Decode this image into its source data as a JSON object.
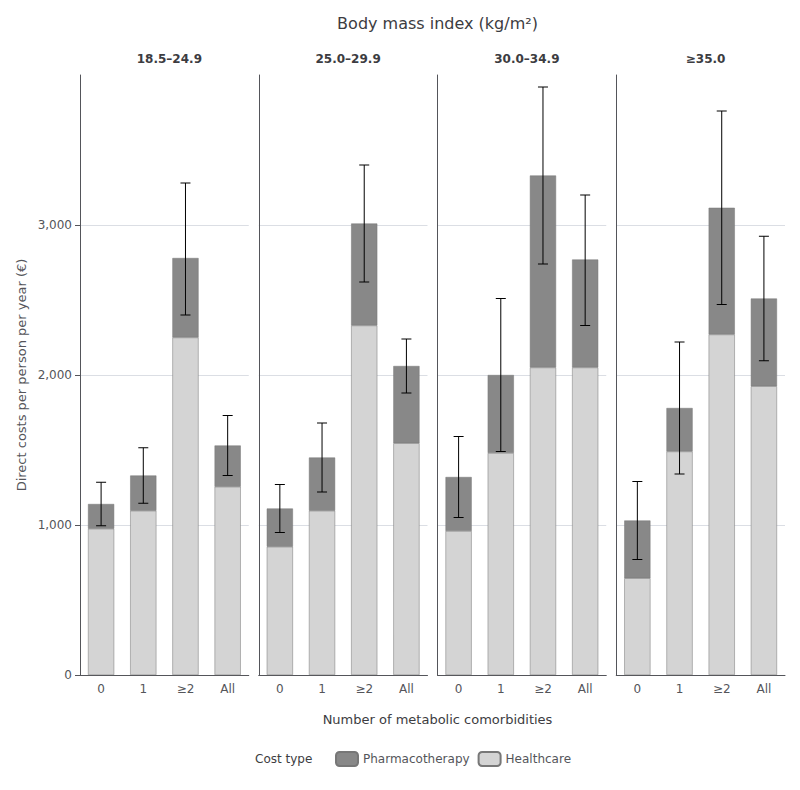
{
  "chart_data": {
    "type": "bar",
    "title": "Body mass index (kg/m²)",
    "xlabel": "Number of metabolic comorbidities",
    "ylabel": "Direct costs per person per year (€)",
    "legend_title": "Cost type",
    "legend": "bottom",
    "stacked": true,
    "grid": true,
    "categories": [
      "0",
      "1",
      "≥2",
      "All"
    ],
    "ylim": [
      0,
      4000
    ],
    "yticks": [
      0,
      {
        "value": 1000,
        "label": "1,000"
      },
      {
        "value": 2000,
        "label": "2,000"
      },
      {
        "value": 3000,
        "label": "3,000"
      }
    ],
    "panels": [
      {
        "title": "18.5–24.9",
        "series": [
          {
            "name": "Healthcare",
            "color": "#d4d4d4",
            "values": [
              975,
              1095,
              2250,
              1255
            ]
          },
          {
            "name": "Pharmacotherapy",
            "color": "#888888",
            "values": [
              165,
              235,
              530,
              275
            ]
          }
        ],
        "ci_low": [
          995,
          1145,
          2400,
          1330
        ],
        "ci_high": [
          1285,
          1515,
          3280,
          1730
        ]
      },
      {
        "title": "25.0–29.9",
        "series": [
          {
            "name": "Healthcare",
            "color": "#d4d4d4",
            "values": [
              855,
              1095,
              2330,
              1545
            ]
          },
          {
            "name": "Pharmacotherapy",
            "color": "#888888",
            "values": [
              255,
              355,
              680,
              515
            ]
          }
        ],
        "ci_low": [
          950,
          1220,
          2620,
          1880
        ],
        "ci_high": [
          1270,
          1680,
          3400,
          2240
        ]
      },
      {
        "title": "30.0–34.9",
        "series": [
          {
            "name": "Healthcare",
            "color": "#d4d4d4",
            "values": [
              960,
              1480,
              2050,
              2050
            ]
          },
          {
            "name": "Pharmacotherapy",
            "color": "#888888",
            "values": [
              360,
              520,
              1280,
              720
            ]
          }
        ],
        "ci_low": [
          1050,
          1490,
          2740,
          2330
        ],
        "ci_high": [
          1590,
          2510,
          3920,
          3200
        ]
      },
      {
        "title": "≥35.0",
        "series": [
          {
            "name": "Healthcare",
            "color": "#d4d4d4",
            "values": [
              645,
              1490,
              2270,
              1925
            ]
          },
          {
            "name": "Pharmacotherapy",
            "color": "#888888",
            "values": [
              385,
              290,
              845,
              585
            ]
          }
        ],
        "ci_low": [
          770,
          1340,
          2470,
          2095
        ],
        "ci_high": [
          1290,
          2220,
          3760,
          2925
        ]
      }
    ]
  }
}
